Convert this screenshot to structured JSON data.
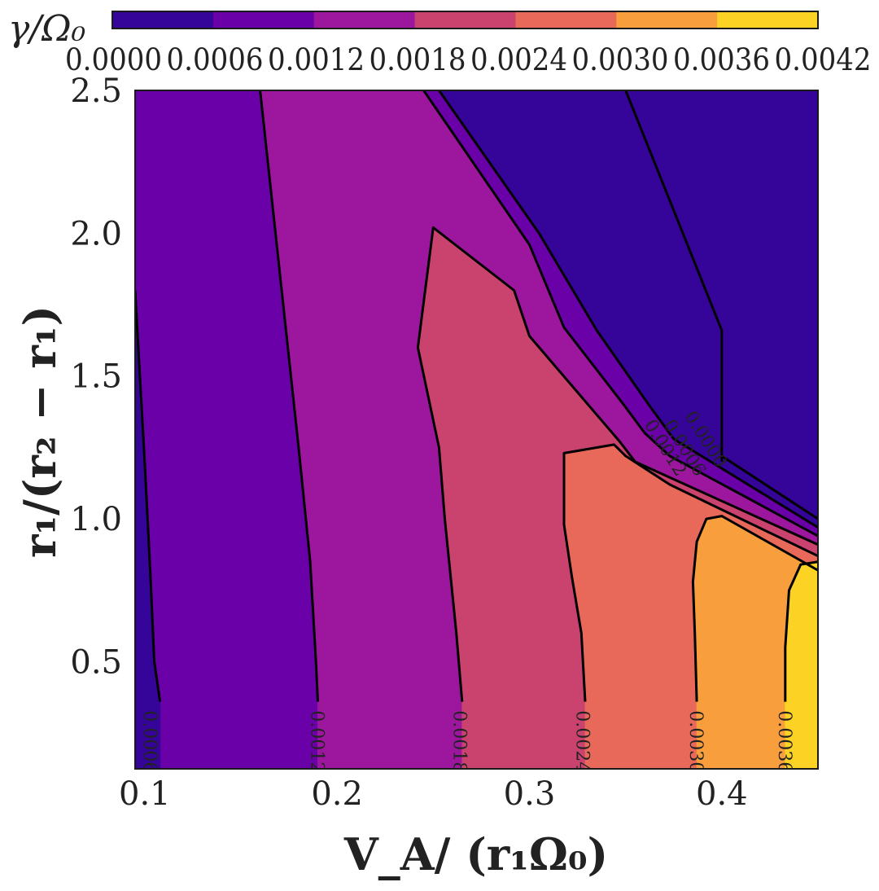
{
  "chart_data": {
    "type": "heatmap",
    "subtype": "filled-contour",
    "colormap": "plasma",
    "colorbar": {
      "title": "γ/Ω₀",
      "levels": [
        0.0,
        0.0006,
        0.0012,
        0.0018,
        0.0024,
        0.003,
        0.0036,
        0.0042
      ],
      "tick_labels": [
        "0.0000",
        "0.0006",
        "0.0012",
        "0.0018",
        "0.0024",
        "0.0030",
        "0.0036",
        "0.0042"
      ],
      "colors": [
        "#350498",
        "#6a00a8",
        "#9c179e",
        "#c9436e",
        "#e8685a",
        "#f89e3c",
        "#fcd225"
      ],
      "placement": "top"
    },
    "xlabel": "V_A/ (r₁Ω₀)",
    "ylabel": "r₁/(r₂ − r₁)",
    "xlim": [
      0.095,
      0.45
    ],
    "ylim": [
      0.125,
      2.5
    ],
    "xticks": [
      0.1,
      0.2,
      0.3,
      0.4
    ],
    "xtick_labels": [
      "0.1",
      "0.2",
      "0.3",
      "0.4"
    ],
    "yticks": [
      0.5,
      1.0,
      1.5,
      2.0,
      2.5
    ],
    "ytick_labels": [
      "0.5",
      "1.0",
      "1.5",
      "2.0",
      "2.5"
    ],
    "region_order": [
      {
        "name": "band-0.0000-0.0006",
        "level_index": 0
      },
      {
        "name": "band-0.0006-0.0012",
        "level_index": 1
      },
      {
        "name": "band-0.0012-0.0018",
        "level_index": 2
      },
      {
        "name": "band-0.0018-0.0024",
        "level_index": 3
      },
      {
        "name": "band-0.0024-0.0030",
        "level_index": 4
      },
      {
        "name": "band-0.0030-0.0036",
        "level_index": 5
      },
      {
        "name": "band-0.0036-0.0042",
        "level_index": 6
      }
    ],
    "contours": [
      {
        "level": 0.0006,
        "points": [
          [
            0.095,
            1.8
          ],
          [
            0.1,
            1.2
          ],
          [
            0.103,
            0.8
          ],
          [
            0.105,
            0.5
          ],
          [
            0.108,
            0.36
          ]
        ]
      },
      {
        "level": 0.0006,
        "points": [
          [
            0.35,
            2.5
          ],
          [
            0.4,
            1.66
          ],
          [
            0.4,
            1.2
          ]
        ]
      },
      {
        "level": 0.0006,
        "points": [
          [
            0.4,
            1.22
          ],
          [
            0.45,
            1.0
          ]
        ]
      },
      {
        "level": 0.0012,
        "points": [
          [
            0.16,
            2.5
          ],
          [
            0.172,
            1.75
          ],
          [
            0.18,
            1.25
          ],
          [
            0.186,
            0.85
          ],
          [
            0.189,
            0.5
          ],
          [
            0.19,
            0.36
          ]
        ]
      },
      {
        "level": 0.0012,
        "points": [
          [
            0.253,
            2.5
          ],
          [
            0.305,
            2.0
          ],
          [
            0.335,
            1.66
          ],
          [
            0.362,
            1.4
          ],
          [
            0.375,
            1.28
          ],
          [
            0.45,
            0.97
          ]
        ]
      },
      {
        "level": 0.0018,
        "points": [
          [
            0.245,
            2.5
          ],
          [
            0.3,
            1.96
          ],
          [
            0.318,
            1.67
          ],
          [
            0.349,
            1.4
          ],
          [
            0.36,
            1.3
          ],
          [
            0.373,
            1.22
          ],
          [
            0.45,
            0.94
          ]
        ]
      },
      {
        "level": 0.0018,
        "points": [
          [
            0.265,
            0.36
          ],
          [
            0.262,
            0.6
          ],
          [
            0.256,
            1.0
          ],
          [
            0.253,
            1.25
          ],
          [
            0.242,
            1.6
          ],
          [
            0.25,
            2.02
          ],
          [
            0.292,
            1.8
          ],
          [
            0.3,
            1.64
          ],
          [
            0.347,
            1.27
          ],
          [
            0.355,
            1.2
          ],
          [
            0.45,
            0.91
          ]
        ]
      },
      {
        "level": 0.0024,
        "points": [
          [
            0.329,
            0.36
          ],
          [
            0.327,
            0.6
          ],
          [
            0.322,
            0.8
          ],
          [
            0.318,
            0.98
          ],
          [
            0.318,
            1.23
          ],
          [
            0.344,
            1.26
          ],
          [
            0.35,
            1.22
          ],
          [
            0.373,
            1.12
          ],
          [
            0.45,
            0.87
          ]
        ]
      },
      {
        "level": 0.003,
        "points": [
          [
            0.387,
            0.36
          ],
          [
            0.386,
            0.6
          ],
          [
            0.385,
            0.78
          ],
          [
            0.387,
            0.92
          ],
          [
            0.392,
            1.0
          ],
          [
            0.4,
            1.01
          ],
          [
            0.45,
            0.82
          ]
        ]
      },
      {
        "level": 0.0036,
        "points": [
          [
            0.433,
            0.36
          ],
          [
            0.433,
            0.55
          ],
          [
            0.435,
            0.75
          ],
          [
            0.441,
            0.84
          ],
          [
            0.45,
            0.85
          ]
        ]
      }
    ],
    "contour_labels": [
      {
        "text": "0.0006",
        "x": 0.103,
        "y": 0.22,
        "rotation": 90
      },
      {
        "text": "0.0012",
        "x": 0.19,
        "y": 0.22,
        "rotation": 90
      },
      {
        "text": "0.0018",
        "x": 0.264,
        "y": 0.22,
        "rotation": 90
      },
      {
        "text": "0.0024",
        "x": 0.328,
        "y": 0.22,
        "rotation": 90
      },
      {
        "text": "0.0030",
        "x": 0.387,
        "y": 0.22,
        "rotation": 90
      },
      {
        "text": "0.0036",
        "x": 0.433,
        "y": 0.22,
        "rotation": 90
      },
      {
        "text": "0.0012",
        "x": 0.371,
        "y": 1.25,
        "rotation": 58
      },
      {
        "text": "0.0006",
        "x": 0.381,
        "y": 1.25,
        "rotation": 58
      },
      {
        "text": "0.0000",
        "x": 0.392,
        "y": 1.28,
        "rotation": 58
      }
    ]
  }
}
